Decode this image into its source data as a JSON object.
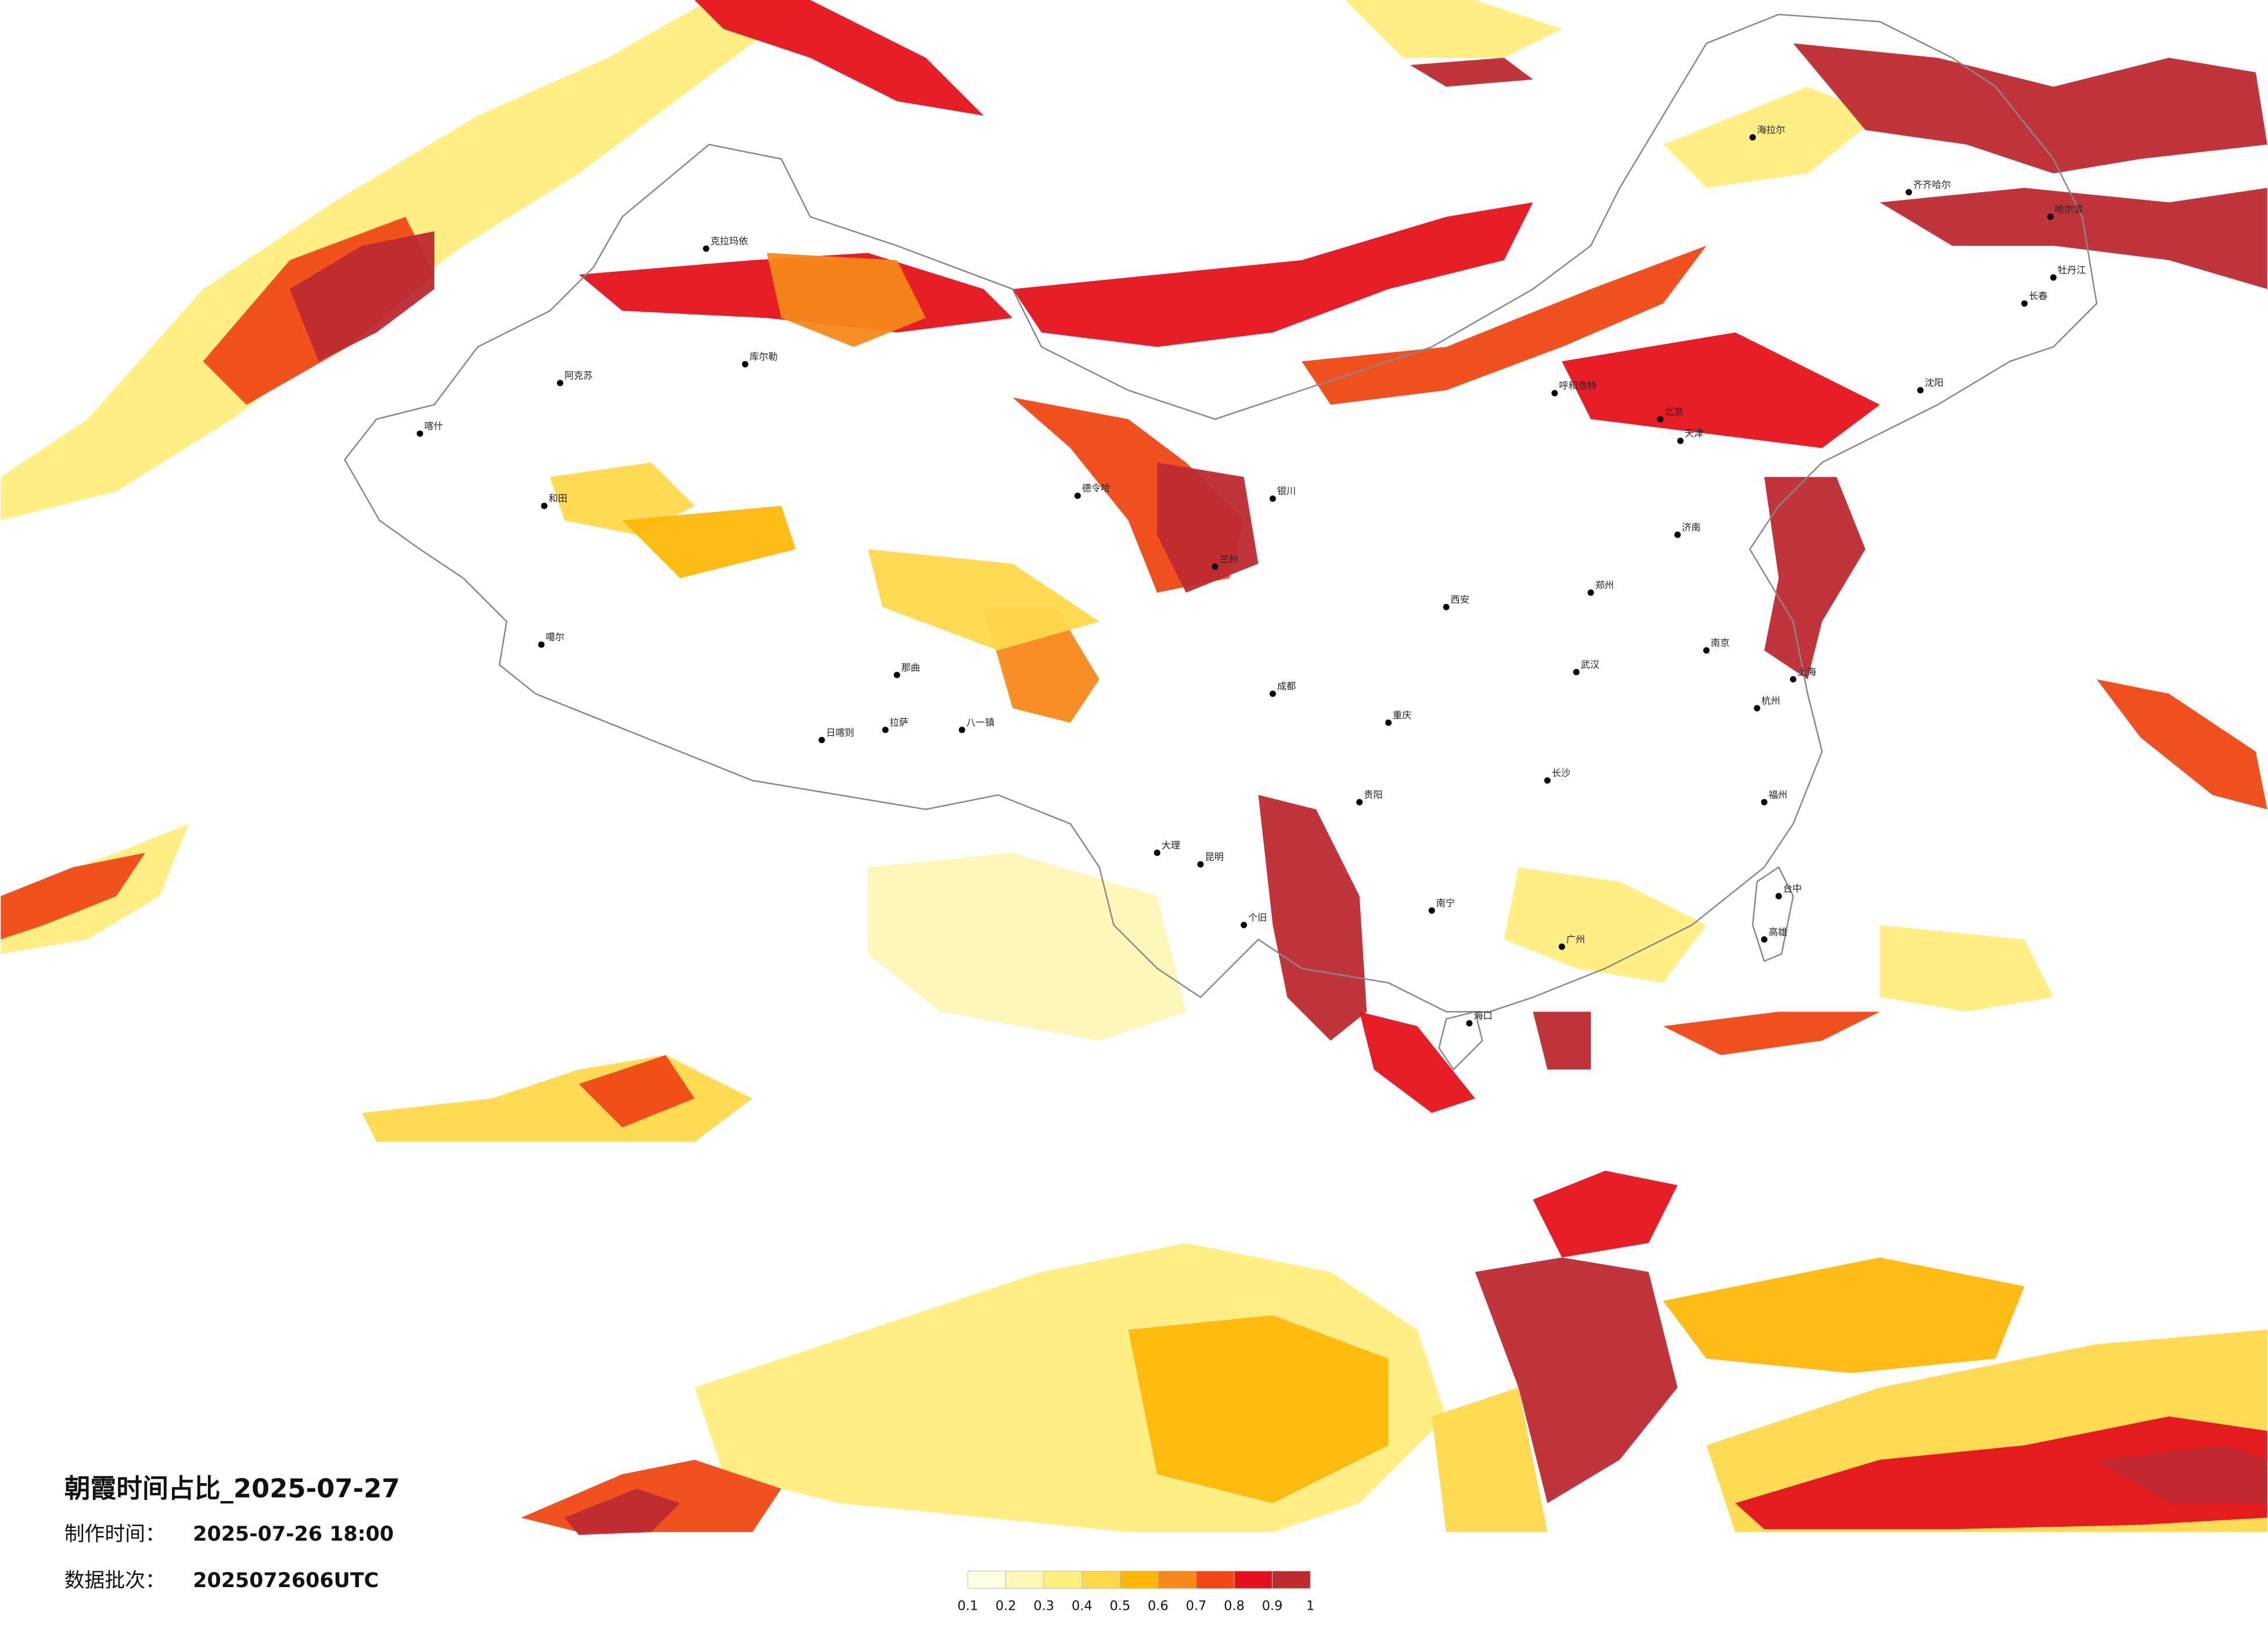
{
  "title": "朝霞时间占比_2025-07-27",
  "info": [
    {
      "label": "制作时间：",
      "value": "2025-07-26 18:00"
    },
    {
      "label": "数据批次：",
      "value": "2025072606UTC"
    }
  ],
  "legend": {
    "colors": [
      "#fffde4",
      "#fff6b8",
      "#ffee80",
      "#ffd84c",
      "#ffb70a",
      "#f7881a",
      "#f04814",
      "#e4121c",
      "#bd2a30"
    ],
    "ticks": [
      0.1,
      0.2,
      0.3,
      0.4,
      0.5,
      0.6,
      0.7,
      0.8,
      0.9,
      1
    ]
  },
  "cities": [
    "克拉玛依",
    "库尔勒",
    "阿克苏",
    "喀什",
    "和田",
    "噶尔",
    "日喀则",
    "拉萨",
    "那曲",
    "八一镇",
    "德令哈",
    "海拉尔",
    "齐齐哈尔",
    "哈尔滨",
    "牡丹江",
    "长春",
    "沈阳",
    "呼和浩特",
    "北京",
    "天津",
    "济南",
    "郑州",
    "西安",
    "兰州",
    "银川",
    "成都",
    "重庆",
    "贵阳",
    "昆明",
    "大理",
    "个旧",
    "南宁",
    "广州",
    "海口",
    "福州",
    "台中",
    "高雄",
    "上海",
    "南京",
    "武汉",
    "长沙",
    "杭州"
  ]
}
